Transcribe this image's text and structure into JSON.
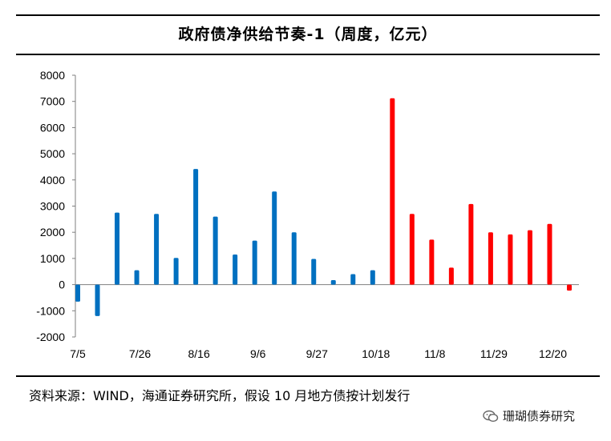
{
  "header": {
    "title": "政府债净供给节奏-1（周度，亿元）"
  },
  "footer": {
    "source": "资料来源：WIND，海通证券研究所，假设 10 月地方债按计划发行",
    "watermark": "珊瑚债券研究",
    "watermark_icon": "wechat-icon"
  },
  "chart_data": {
    "type": "bar",
    "title": "政府债净供给节奏-1（周度，亿元）",
    "xlabel": "",
    "ylabel": "",
    "ylim": [
      -2000,
      8000
    ],
    "yticks": [
      -2000,
      -1000,
      0,
      1000,
      2000,
      3000,
      4000,
      5000,
      6000,
      7000,
      8000
    ],
    "ytick_labels": [
      "-2000",
      "-1000",
      "0",
      "1000",
      "2000",
      "3000",
      "4000",
      "5000",
      "6000",
      "7000",
      "8000"
    ],
    "x_tick_labels": [
      "7/5",
      "7/26",
      "8/16",
      "9/6",
      "9/27",
      "10/18",
      "11/8",
      "11/29",
      "12/20"
    ],
    "x_tick_every": 3,
    "grid": false,
    "legend": "none",
    "colors": {
      "actual": "#0070C0",
      "planned": "#FF0000"
    },
    "values": [
      -650,
      -1200,
      2750,
      550,
      2700,
      1020,
      4420,
      2600,
      1150,
      1680,
      3560,
      2000,
      980,
      170,
      400,
      550,
      7120,
      2700,
      1720,
      650,
      3080,
      2000,
      1920,
      2080,
      2320,
      -230
    ],
    "bar_colors": [
      "actual",
      "actual",
      "actual",
      "actual",
      "actual",
      "actual",
      "actual",
      "actual",
      "actual",
      "actual",
      "actual",
      "actual",
      "actual",
      "actual",
      "actual",
      "actual",
      "planned",
      "planned",
      "planned",
      "planned",
      "planned",
      "planned",
      "planned",
      "planned",
      "planned",
      "planned"
    ]
  }
}
